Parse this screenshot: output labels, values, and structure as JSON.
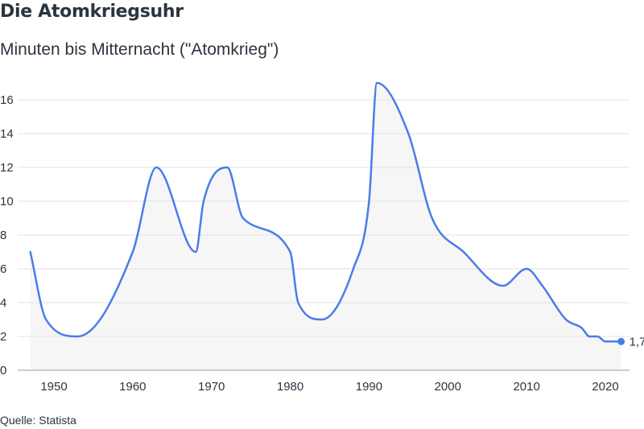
{
  "header": {
    "title": "Die Atomkriegsuhr",
    "subtitle": "Minuten bis Mitternacht (\"Atomkrieg\")"
  },
  "footer": {
    "source": "Quelle: Statista"
  },
  "colors": {
    "line": "#4a7de8",
    "area": "#f6f6f6",
    "grid": "#e2e2e2",
    "text": "#2b3540"
  },
  "chart_data": {
    "type": "area",
    "title": "Die Atomkriegsuhr",
    "subtitle": "Minuten bis Mitternacht (\"Atomkrieg\")",
    "xlabel": "",
    "ylabel": "",
    "xlim": [
      1947,
      2022
    ],
    "ylim": [
      0,
      16
    ],
    "grid": true,
    "legend": "none",
    "x_ticks": [
      1950,
      1960,
      1970,
      1980,
      1990,
      2000,
      2010,
      2020
    ],
    "y_ticks": [
      0,
      2,
      4,
      6,
      8,
      10,
      12,
      14,
      16
    ],
    "series": [
      {
        "x": [
          1947,
          1949,
          1953,
          1960,
          1963,
          1968,
          1969,
          1972,
          1974,
          1980,
          1981,
          1984,
          1988,
          1990,
          1991,
          1995,
          1998,
          2002,
          2007,
          2010,
          2012,
          2015,
          2017,
          2018,
          2019,
          2020,
          2022
        ],
        "values": [
          7,
          3,
          2,
          7,
          12,
          7,
          10,
          12,
          9,
          7,
          4,
          3,
          6,
          10,
          17,
          14,
          9,
          7,
          5,
          6,
          5,
          3,
          2.5,
          2,
          2,
          1.7,
          1.7
        ]
      }
    ],
    "end_label": "1,7"
  }
}
